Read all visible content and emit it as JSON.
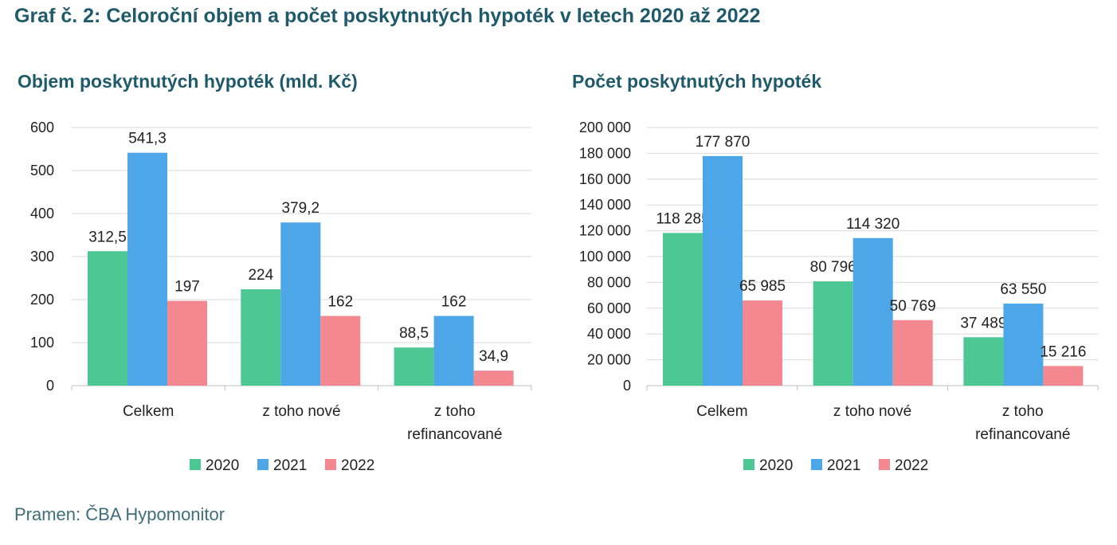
{
  "title": "Graf č. 2: Celoroční objem a počet poskytnutých hypoték v letech 2020 až 2022",
  "source": "Pramen: ČBA Hypomonitor",
  "colors": {
    "2020": "#4dc793",
    "2021": "#4da6e8",
    "2022": "#f38891",
    "title": "#1f5a6b"
  },
  "chart_data": [
    {
      "type": "bar",
      "title": "Objem poskytnutých hypoték (mld. Kč)",
      "categories": [
        [
          "Celkem"
        ],
        [
          "z toho nové"
        ],
        [
          "z toho",
          "refinancované"
        ]
      ],
      "series": [
        {
          "name": "2020",
          "values": [
            312.5,
            224,
            88.5
          ],
          "labels": [
            "312,5",
            "224",
            "88,5"
          ]
        },
        {
          "name": "2021",
          "values": [
            541.3,
            379.2,
            162
          ],
          "labels": [
            "541,3",
            "379,2",
            "162"
          ]
        },
        {
          "name": "2022",
          "values": [
            197,
            162,
            34.9
          ],
          "labels": [
            "197",
            "162",
            "34,9"
          ]
        }
      ],
      "ylim": [
        0,
        600
      ],
      "yticks": [
        0,
        100,
        200,
        300,
        400,
        500,
        600
      ],
      "ytick_labels": [
        "0",
        "100",
        "200",
        "300",
        "400",
        "500",
        "600"
      ],
      "grid": true,
      "legend": "bottom"
    },
    {
      "type": "bar",
      "title": "Počet poskytnutých hypoték",
      "categories": [
        [
          "Celkem"
        ],
        [
          "z toho nové"
        ],
        [
          "z toho",
          "refinancované"
        ]
      ],
      "series": [
        {
          "name": "2020",
          "values": [
            118285,
            80796,
            37489
          ],
          "labels": [
            "118 285",
            "80 796",
            "37 489"
          ]
        },
        {
          "name": "2021",
          "values": [
            177870,
            114320,
            63550
          ],
          "labels": [
            "177 870",
            "114 320",
            "63 550"
          ]
        },
        {
          "name": "2022",
          "values": [
            65985,
            50769,
            15216
          ],
          "labels": [
            "65 985",
            "50 769",
            "15 216"
          ]
        }
      ],
      "ylim": [
        0,
        200000
      ],
      "yticks": [
        0,
        20000,
        40000,
        60000,
        80000,
        100000,
        120000,
        140000,
        160000,
        180000,
        200000
      ],
      "ytick_labels": [
        "0",
        "20 000",
        "40 000",
        "60 000",
        "80 000",
        "100 000",
        "120 000",
        "140 000",
        "160 000",
        "180 000",
        "200 000"
      ],
      "grid": true,
      "legend": "bottom"
    }
  ]
}
